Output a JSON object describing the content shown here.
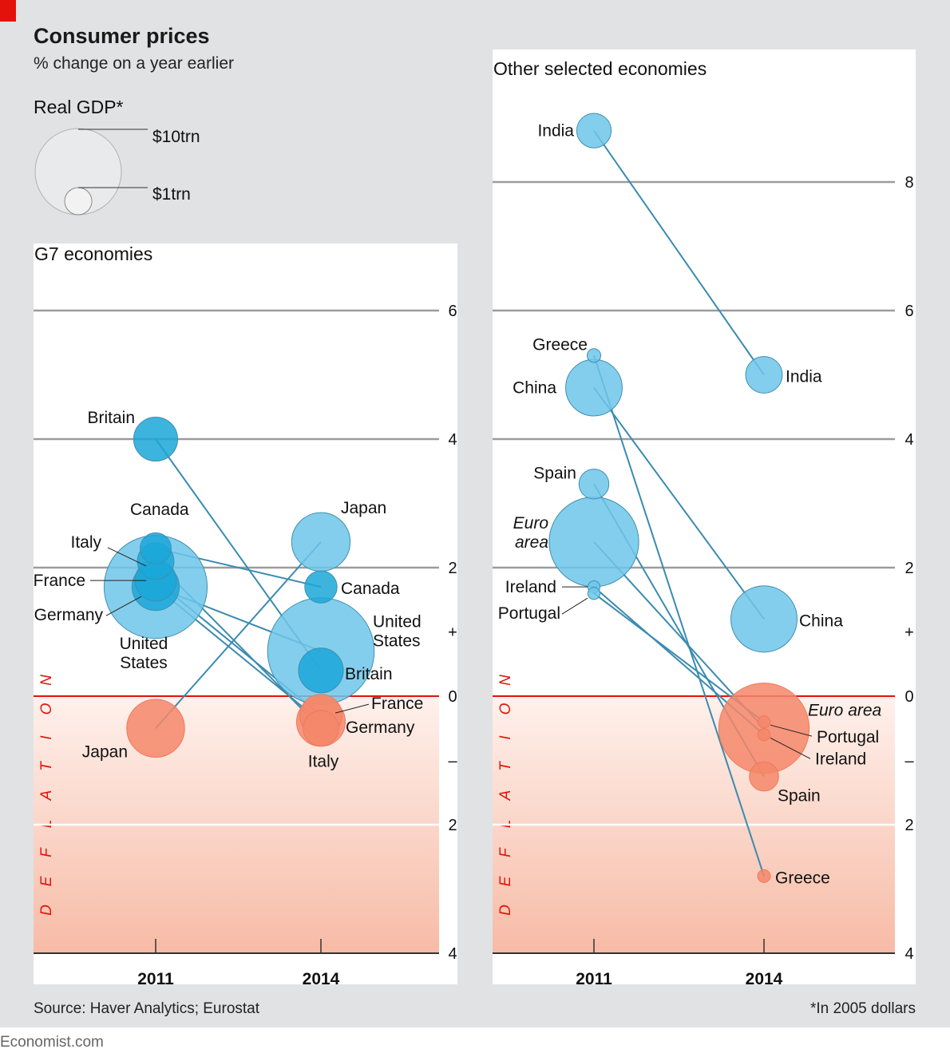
{
  "header": {
    "title": "Consumer prices",
    "subtitle": "% change on a year earlier"
  },
  "legend": {
    "title": "Real GDP*",
    "large_label": "$10trn",
    "small_label": "$1trn",
    "large_value_trn": 10,
    "small_value_trn": 1
  },
  "footer": {
    "source": "Source: Haver Analytics; Eurostat",
    "note": "*In 2005 dollars",
    "brand": "Economist.com"
  },
  "colors": {
    "background": "#e1e2e3",
    "panel": "#ffffff",
    "accent_red": "#e3120b",
    "inflation_bubble": "#6ec6ea",
    "inflation_bubble_dark": "#1aa7d8",
    "deflation_bubble": "#f4876a",
    "line": "#3a8bb0",
    "gridline": "#9b9c9e"
  },
  "chart_data": [
    {
      "type": "scatter",
      "title": "G7 economies",
      "categories": [
        "2011",
        "2014"
      ],
      "ylabel": "Consumer prices, % change on a year earlier",
      "ylim": [
        -4,
        6.5
      ],
      "yticks": [
        "6",
        "4",
        "2",
        "+",
        "0",
        "–",
        "2",
        "4"
      ],
      "ytick_values": [
        6,
        4,
        2,
        1,
        0,
        -1,
        -2,
        -4
      ],
      "shaded_region": {
        "label": "DEFLATION",
        "from": 0,
        "to": -4
      },
      "grid": true,
      "series": [
        {
          "name": "Britain",
          "values": [
            4.0,
            0.4
          ],
          "gdp_trn": [
            2.6,
            2.7
          ],
          "labels": [
            "Britain",
            "Britain"
          ]
        },
        {
          "name": "Canada",
          "values": [
            2.3,
            1.7
          ],
          "gdp_trn": [
            1.3,
            1.4
          ],
          "labels": [
            "Canada",
            "Canada"
          ]
        },
        {
          "name": "Italy",
          "values": [
            2.1,
            -0.5
          ],
          "gdp_trn": [
            1.8,
            1.7
          ],
          "labels": [
            "Italy",
            "Italy"
          ]
        },
        {
          "name": "France",
          "values": [
            1.8,
            -0.3
          ],
          "gdp_trn": [
            2.3,
            2.4
          ],
          "labels": [
            "France",
            "France"
          ]
        },
        {
          "name": "Germany",
          "values": [
            1.7,
            -0.4
          ],
          "gdp_trn": [
            3.0,
            3.2
          ],
          "labels": [
            "Germany",
            "Germany"
          ]
        },
        {
          "name": "United States",
          "values": [
            1.7,
            0.7
          ],
          "gdp_trn": [
            14.3,
            15.3
          ],
          "labels": [
            "United States",
            "United States"
          ]
        },
        {
          "name": "Japan",
          "values": [
            -0.5,
            2.4
          ],
          "gdp_trn": [
            4.5,
            4.6
          ],
          "labels": [
            "Japan",
            "Japan"
          ]
        }
      ]
    },
    {
      "type": "scatter",
      "title": "Other selected economies",
      "categories": [
        "2011",
        "2014"
      ],
      "ylabel": "Consumer prices, % change on a year earlier",
      "ylim": [
        -4,
        9.5
      ],
      "yticks": [
        "8",
        "6",
        "4",
        "2",
        "+",
        "0",
        "–",
        "2",
        "4"
      ],
      "ytick_values": [
        8,
        6,
        4,
        2,
        1,
        0,
        -1,
        -2,
        -4
      ],
      "shaded_region": {
        "label": "DEFLATION",
        "from": 0,
        "to": -4
      },
      "grid": true,
      "series": [
        {
          "name": "India",
          "values": [
            8.8,
            5.0
          ],
          "gdp_trn": [
            1.6,
            1.8
          ],
          "labels": [
            "India",
            "India"
          ]
        },
        {
          "name": "Greece",
          "values": [
            5.3,
            -2.8
          ],
          "gdp_trn": [
            0.25,
            0.22
          ],
          "labels": [
            "Greece",
            "Greece"
          ]
        },
        {
          "name": "China",
          "values": [
            4.8,
            1.2
          ],
          "gdp_trn": [
            4.3,
            5.9
          ],
          "labels": [
            "China",
            "China"
          ]
        },
        {
          "name": "Spain",
          "values": [
            3.3,
            -1.25
          ],
          "gdp_trn": [
            1.2,
            1.15
          ],
          "labels": [
            "Spain",
            "Spain"
          ]
        },
        {
          "name": "Euro area",
          "values": [
            2.4,
            -0.5
          ],
          "gdp_trn": [
            10.8,
            11.0
          ],
          "labels": [
            "Euro area",
            "Euro area"
          ],
          "italic": true
        },
        {
          "name": "Ireland",
          "values": [
            1.7,
            -0.6
          ],
          "gdp_trn": [
            0.2,
            0.2
          ],
          "labels": [
            "Ireland",
            "Ireland"
          ]
        },
        {
          "name": "Portugal",
          "values": [
            1.6,
            -0.4
          ],
          "gdp_trn": [
            0.2,
            0.2
          ],
          "labels": [
            "Portugal",
            "Portugal"
          ]
        }
      ]
    }
  ]
}
